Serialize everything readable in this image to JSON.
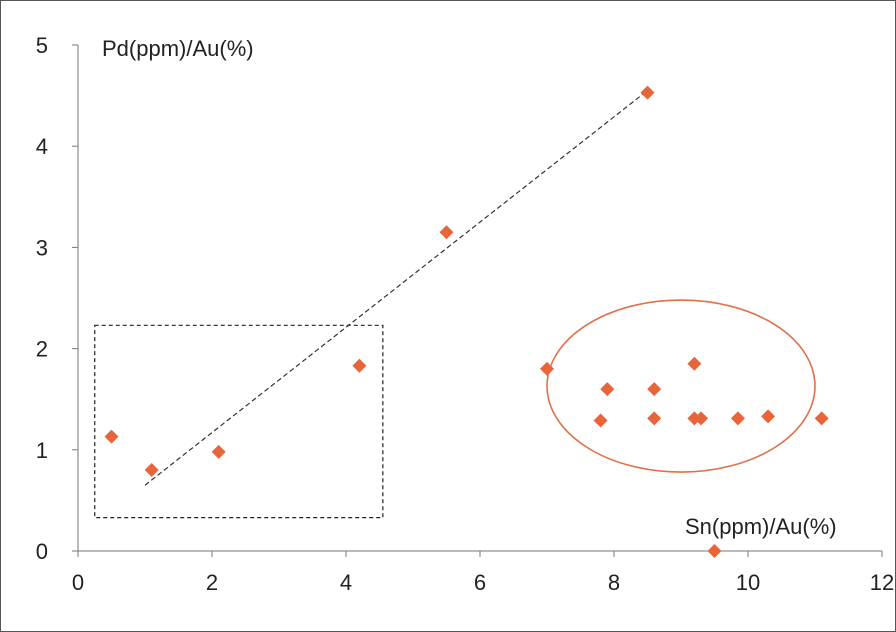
{
  "chart_data": {
    "type": "scatter",
    "xlabel": "Sn(ppm)/Au(%)",
    "ylabel": "Pd(ppm)/Au(%)",
    "xlim": [
      0,
      12
    ],
    "ylim": [
      0,
      5
    ],
    "x_ticks": [
      "0",
      "2",
      "4",
      "6",
      "8",
      "10",
      "12"
    ],
    "y_ticks": [
      "0",
      "1",
      "2",
      "3",
      "4",
      "5"
    ],
    "grid": false,
    "marker_color": "#e8643a",
    "ellipse_color": "#e07048",
    "series": [
      {
        "points": [
          {
            "x": 0.5,
            "y": 1.13
          },
          {
            "x": 1.1,
            "y": 0.8
          },
          {
            "x": 2.1,
            "y": 0.98
          },
          {
            "x": 4.2,
            "y": 1.83
          },
          {
            "x": 5.5,
            "y": 3.15
          },
          {
            "x": 8.5,
            "y": 4.53
          },
          {
            "x": 7.0,
            "y": 1.8
          },
          {
            "x": 7.9,
            "y": 1.6
          },
          {
            "x": 8.6,
            "y": 1.6
          },
          {
            "x": 9.2,
            "y": 1.85
          },
          {
            "x": 7.8,
            "y": 1.29
          },
          {
            "x": 8.6,
            "y": 1.31
          },
          {
            "x": 9.2,
            "y": 1.31
          },
          {
            "x": 9.3,
            "y": 1.31
          },
          {
            "x": 9.85,
            "y": 1.31
          },
          {
            "x": 10.3,
            "y": 1.33
          },
          {
            "x": 11.1,
            "y": 1.31
          },
          {
            "x": 9.5,
            "y": 0.0
          }
        ]
      }
    ],
    "trendline": {
      "x1": 1.0,
      "y1": 0.65,
      "x2": 8.5,
      "y2": 4.55,
      "style": "dashed"
    },
    "annotations": [
      {
        "type": "dashed-rectangle",
        "x_min": 0.25,
        "x_max": 4.55,
        "y_min": 0.33,
        "y_max": 2.23
      },
      {
        "type": "ellipse",
        "cx": 9.0,
        "cy": 1.63,
        "rx": 2.0,
        "ry": 0.85
      }
    ]
  }
}
